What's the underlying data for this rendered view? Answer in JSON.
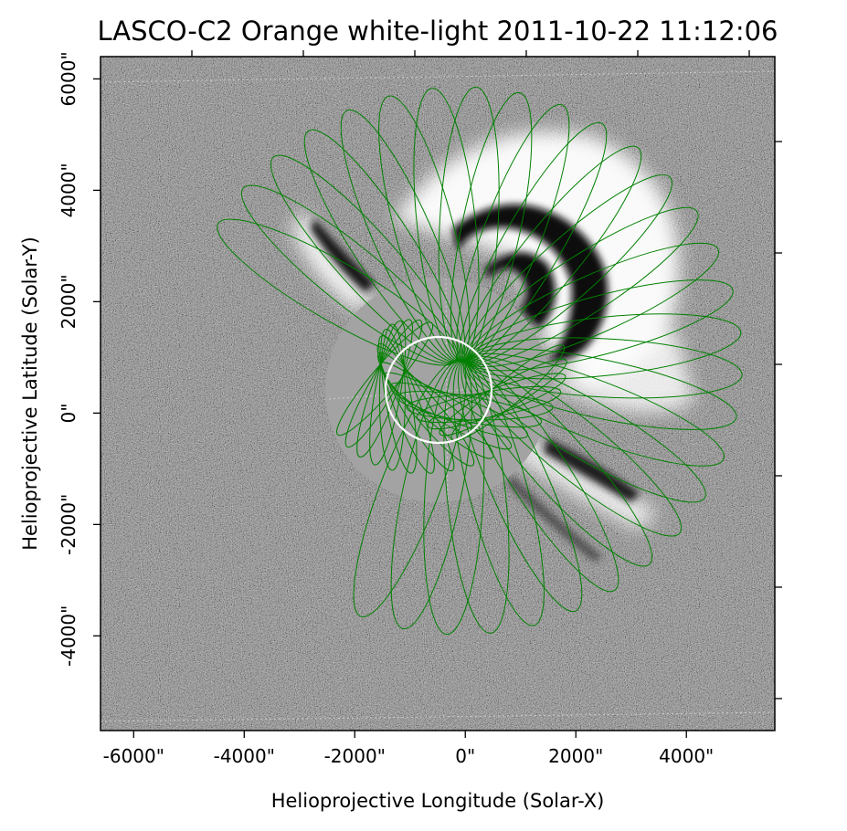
{
  "figure": {
    "title": "LASCO-C2 Orange white-light 2011-10-22 11:12:06",
    "xlabel": "Helioprojective Longitude (Solar-X)",
    "ylabel": "Helioprojective Latitude (Solar-Y)",
    "xlim": [
      -6600,
      5600
    ],
    "ylim": [
      -5700,
      6400
    ],
    "xticks": [
      {
        "value": -6000,
        "label": "-6000\""
      },
      {
        "value": -4000,
        "label": "-4000\""
      },
      {
        "value": -2000,
        "label": "-2000\""
      },
      {
        "value": 0,
        "label": "0\""
      },
      {
        "value": 2000,
        "label": "2000\""
      },
      {
        "value": 4000,
        "label": "4000\""
      }
    ],
    "yticks": [
      {
        "value": -4000,
        "label": "-4000\""
      },
      {
        "value": -2000,
        "label": "-2000\""
      },
      {
        "value": 0,
        "label": "0\""
      },
      {
        "value": 2000,
        "label": "2000\""
      },
      {
        "value": 4000,
        "label": "4000\""
      },
      {
        "value": 6000,
        "label": "6000\""
      }
    ],
    "colors": {
      "background": "#ffffff",
      "image_gray": "#8c8c8c",
      "occulter": "#a3a3a3",
      "mesh": "#008000",
      "limb": "#ffffff",
      "grid": "#d9d9d9"
    }
  }
}
